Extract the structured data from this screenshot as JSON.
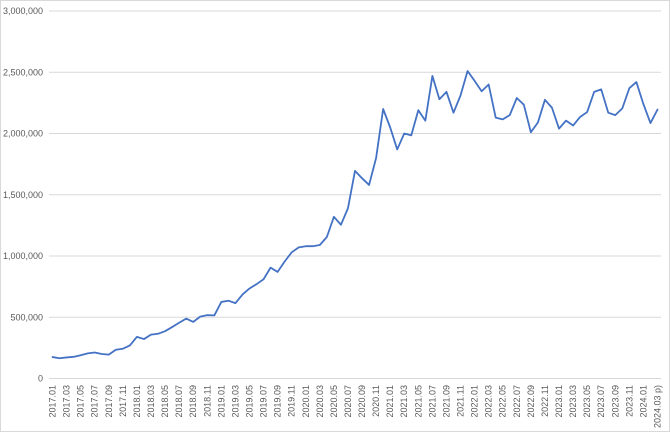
{
  "chart_data": {
    "type": "line",
    "title": "",
    "xlabel": "",
    "ylabel": "",
    "legend": "none",
    "grid": "horizontal-only",
    "x": [
      "2017.01",
      "2017.02",
      "2017.03",
      "2017.04",
      "2017.05",
      "2017.06",
      "2017.07",
      "2017.08",
      "2017.09",
      "2017.10",
      "2017.11",
      "2017.12",
      "2018.01",
      "2018.02",
      "2018.03",
      "2018.04",
      "2018.05",
      "2018.06",
      "2018.07",
      "2018.08",
      "2018.09",
      "2018.10",
      "2018.11",
      "2018.12",
      "2019.01",
      "2019.02",
      "2019.03",
      "2019.04",
      "2019.05",
      "2019.06",
      "2019.07",
      "2019.08",
      "2019.09",
      "2019.10",
      "2019.11",
      "2019.12",
      "2020.01",
      "2020.02",
      "2020.03",
      "2020.04",
      "2020.05",
      "2020.06",
      "2020.07",
      "2020.08",
      "2020.09",
      "2020.10",
      "2020.11",
      "2020.12",
      "2021.01",
      "2021.02",
      "2021.03",
      "2021.04",
      "2021.05",
      "2021.06",
      "2021.07",
      "2021.08",
      "2021.09",
      "2021.10",
      "2021.11",
      "2021.12",
      "2022.01",
      "2022.02",
      "2022.03",
      "2022.04",
      "2022.05",
      "2022.06",
      "2022.07",
      "2022.08",
      "2022.09",
      "2022.10",
      "2022.11",
      "2022.12",
      "2023.01",
      "2023.02",
      "2023.03",
      "2023.04",
      "2023.05",
      "2023.06",
      "2023.07",
      "2023.08",
      "2023.09",
      "2023.10",
      "2023.11",
      "2023.12",
      "2024.01",
      "2024.02",
      "2024.03 p)"
    ],
    "series": [
      {
        "name": "",
        "color": "#4472C4",
        "values": [
          175000,
          165000,
          172000,
          177000,
          190000,
          205000,
          212000,
          200000,
          195000,
          235000,
          243000,
          270000,
          340000,
          322000,
          358000,
          365000,
          386000,
          420000,
          455000,
          489000,
          462000,
          505000,
          517000,
          515000,
          625000,
          635000,
          615000,
          685000,
          735000,
          770000,
          810000,
          905000,
          870000,
          955000,
          1030000,
          1070000,
          1080000,
          1080000,
          1090000,
          1155000,
          1320000,
          1255000,
          1390000,
          1695000,
          1635000,
          1580000,
          1800000,
          2200000,
          2050000,
          1870000,
          2000000,
          1985000,
          2190000,
          2105000,
          2470000,
          2280000,
          2340000,
          2170000,
          2310000,
          2510000,
          2430000,
          2345000,
          2400000,
          2130000,
          2115000,
          2150000,
          2290000,
          2235000,
          2010000,
          2090000,
          2275000,
          2210000,
          2040000,
          2105000,
          2065000,
          2135000,
          2175000,
          2340000,
          2360000,
          2170000,
          2150000,
          2205000,
          2370000,
          2420000,
          2240000,
          2085000,
          2195000
        ]
      }
    ],
    "y_axis": {
      "min": 0,
      "max": 3000000,
      "step": 500000,
      "tick_labels": [
        "0",
        "500,000",
        "1,000,000",
        "1,500,000",
        "2,000,000",
        "2,500,000",
        "3,000,000"
      ]
    },
    "x_axis": {
      "label_every": 2,
      "label_rotation_deg": -90
    }
  },
  "styles": {
    "line_color": "#4472C4",
    "gridline_color": "#D9D9D9",
    "border_color": "#D9D9D9",
    "axis_text_color": "#595959",
    "background": "#FFFFFF"
  }
}
